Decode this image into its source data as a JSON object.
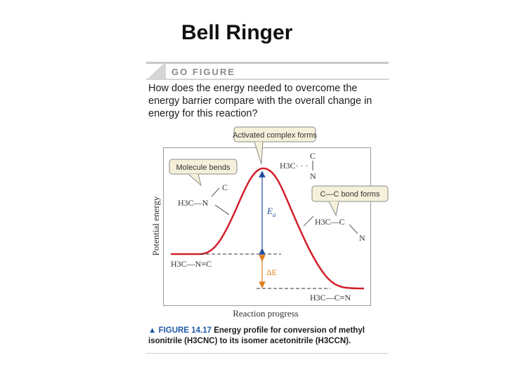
{
  "slide": {
    "title": "Bell Ringer"
  },
  "go_figure": {
    "label": "GO FIGURE",
    "question": "How does the energy needed to overcome the energy barrier compare with the overall change in energy for this reaction?"
  },
  "diagram": {
    "ylabel": "Potential energy",
    "xlabel": "Reaction progress",
    "callouts": {
      "activated": "Activated complex forms",
      "bends": "Molecule bends",
      "bond": "C—C bond forms"
    },
    "ea_label": "E",
    "ea_sub": "a",
    "delta_e_label": "ΔE",
    "molecules": {
      "reactant": "H3C—N≡C",
      "bent_h3c": "H3C—N",
      "bent_c": "C",
      "ts_h3c": "H3C· · ·",
      "ts_c": "C",
      "ts_n": "N",
      "prod_bent_h3c": "H3C—C",
      "prod_bent_n": "N",
      "product": "H3C—C≡N"
    },
    "colors": {
      "curve": "#d0202a",
      "arrow_ea": "#1f4e9c",
      "arrow_de": "#e07b1a",
      "callout_bg": "#f5f0da"
    }
  },
  "caption": {
    "head": "▲ FIGURE 14.17",
    "text": "Energy profile for conversion of methyl isonitrile (H3CNC) to its isomer acetonitrile (H3CCN)."
  }
}
